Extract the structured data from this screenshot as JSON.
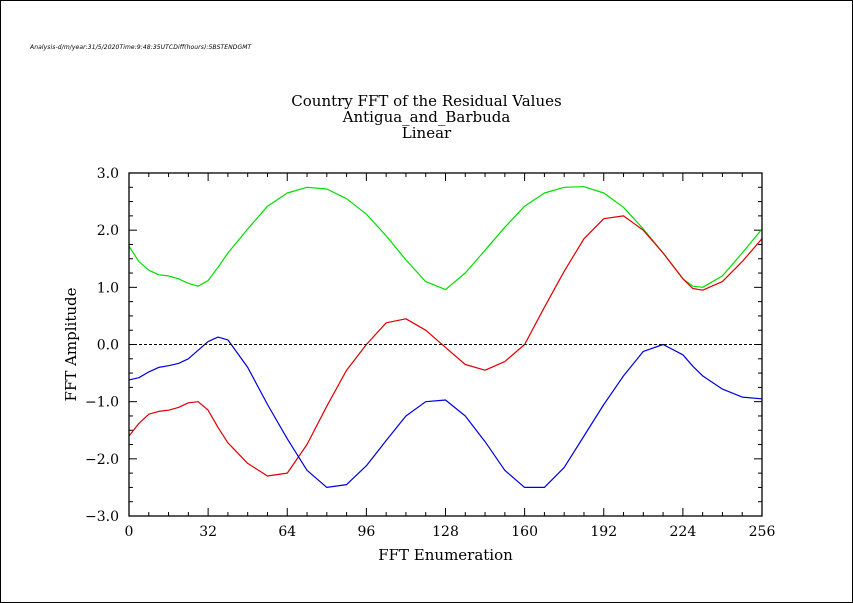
{
  "header": {
    "meta": "Analysis-d/m/year:31/5/2020Time:9:48:35UTCDiff(hours):5BSTENDGMT"
  },
  "chart_data": {
    "type": "line",
    "title": "Country FFT of the Residual Values",
    "subtitle_lines": [
      "Antigua_and_Barbuda",
      "Linear"
    ],
    "xlabel": "FFT Enumeration",
    "ylabel": "FFT Amplitude",
    "xlim": [
      0,
      256
    ],
    "ylim": [
      -3.0,
      3.0
    ],
    "xticks": [
      0,
      32,
      64,
      96,
      128,
      160,
      192,
      224,
      256
    ],
    "yticks": [
      -3.0,
      -2.0,
      -1.0,
      0.0,
      1.0,
      2.0,
      3.0
    ],
    "ytick_labels": [
      "−3.0",
      "−2.0",
      "−1.0",
      "0.0",
      "1.0",
      "2.0",
      "3.0"
    ],
    "zero_line": 0.0,
    "series": [
      {
        "color": "#00dd00",
        "x": [
          0,
          4,
          8,
          12,
          16,
          20,
          24,
          28,
          32,
          36,
          40,
          48,
          56,
          64,
          72,
          80,
          88,
          96,
          104,
          112,
          120,
          128,
          136,
          144,
          152,
          160,
          168,
          176,
          184,
          192,
          200,
          208,
          216,
          224,
          228,
          232,
          240,
          248,
          256
        ],
        "y": [
          1.72,
          1.45,
          1.3,
          1.22,
          1.2,
          1.15,
          1.07,
          1.02,
          1.12,
          1.35,
          1.6,
          2.02,
          2.42,
          2.65,
          2.75,
          2.72,
          2.55,
          2.28,
          1.9,
          1.48,
          1.1,
          0.96,
          1.25,
          1.65,
          2.05,
          2.42,
          2.65,
          2.75,
          2.76,
          2.65,
          2.4,
          2.02,
          1.6,
          1.15,
          1.02,
          1.0,
          1.2,
          1.6,
          2.02
        ]
      },
      {
        "color": "#dd0000",
        "x": [
          0,
          4,
          8,
          12,
          16,
          20,
          24,
          28,
          32,
          36,
          40,
          48,
          56,
          64,
          72,
          80,
          88,
          96,
          104,
          112,
          120,
          128,
          136,
          144,
          152,
          160,
          168,
          176,
          184,
          192,
          200,
          208,
          216,
          224,
          228,
          232,
          240,
          248,
          256
        ],
        "y": [
          -1.6,
          -1.38,
          -1.22,
          -1.17,
          -1.15,
          -1.1,
          -1.02,
          -1.0,
          -1.15,
          -1.45,
          -1.72,
          -2.08,
          -2.3,
          -2.25,
          -1.75,
          -1.08,
          -0.45,
          0.0,
          0.38,
          0.45,
          0.25,
          -0.05,
          -0.35,
          -0.45,
          -0.3,
          0.0,
          0.65,
          1.28,
          1.85,
          2.2,
          2.25,
          2.0,
          1.6,
          1.15,
          0.98,
          0.95,
          1.1,
          1.45,
          1.85
        ]
      },
      {
        "color": "#0000dd",
        "x": [
          0,
          4,
          8,
          12,
          16,
          20,
          24,
          28,
          32,
          36,
          40,
          48,
          56,
          64,
          72,
          80,
          88,
          96,
          104,
          112,
          120,
          128,
          136,
          144,
          152,
          160,
          168,
          176,
          184,
          192,
          200,
          208,
          216,
          224,
          228,
          232,
          240,
          248,
          256
        ],
        "y": [
          -0.62,
          -0.58,
          -0.48,
          -0.4,
          -0.37,
          -0.33,
          -0.25,
          -0.1,
          0.05,
          0.13,
          0.08,
          -0.4,
          -1.05,
          -1.65,
          -2.2,
          -2.5,
          -2.45,
          -2.12,
          -1.68,
          -1.25,
          -1.0,
          -0.97,
          -1.25,
          -1.7,
          -2.2,
          -2.5,
          -2.5,
          -2.15,
          -1.6,
          -1.05,
          -0.55,
          -0.12,
          0.0,
          -0.18,
          -0.38,
          -0.55,
          -0.78,
          -0.92,
          -0.95
        ]
      }
    ]
  }
}
